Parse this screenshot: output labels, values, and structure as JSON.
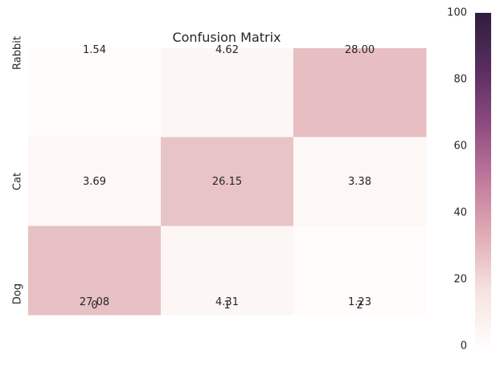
{
  "chart_data": {
    "type": "heatmap",
    "title": "Confusion Matrix",
    "x_tick_labels": [
      "0",
      "1",
      "2"
    ],
    "y_tick_labels": [
      "Rabbit",
      "Cat",
      "Dog"
    ],
    "values": [
      [
        1.54,
        4.62,
        28.0
      ],
      [
        3.69,
        26.15,
        3.38
      ],
      [
        27.08,
        4.31,
        1.23
      ]
    ],
    "cell_labels": [
      [
        "1.54",
        "4.62",
        "28.00"
      ],
      [
        "3.69",
        "26.15",
        "3.38"
      ],
      [
        "27.08",
        "4.31",
        "1.23"
      ]
    ],
    "colorbar": {
      "range": [
        0,
        100
      ],
      "ticks": [
        "0",
        "20",
        "40",
        "60",
        "80",
        "100"
      ],
      "tick_values": [
        0,
        20,
        40,
        60,
        80,
        100
      ]
    },
    "colormap_stops": [
      "#fffdfc",
      "#f5e3df",
      "#e0adb4",
      "#c1789c",
      "#8c4b80",
      "#5a2d5f",
      "#2d1e3e"
    ],
    "grid": false
  }
}
